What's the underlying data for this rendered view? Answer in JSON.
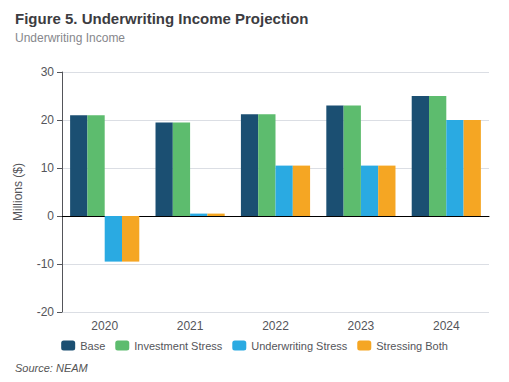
{
  "chart_data": {
    "type": "bar",
    "title": "Figure 5. Underwriting Income Projection",
    "subtitle": "Underwriting Income",
    "ylabel": "Millions ($)",
    "annotations": [
      "Source: NEAM"
    ],
    "categories": [
      "2020",
      "2021",
      "2022",
      "2023",
      "2024"
    ],
    "series": [
      {
        "name": "Base",
        "color": "#1b4f72",
        "values": [
          21.0,
          19.5,
          21.2,
          23.0,
          25.0
        ]
      },
      {
        "name": "Investment Stress",
        "color": "#5dbc6e",
        "values": [
          21.0,
          19.5,
          21.2,
          23.0,
          25.0
        ]
      },
      {
        "name": "Underwriting Stress",
        "color": "#2aaae2",
        "values": [
          -9.5,
          0.5,
          10.5,
          10.5,
          20.0
        ]
      },
      {
        "name": "Stressing Both",
        "color": "#f5a623",
        "values": [
          -9.5,
          0.5,
          10.5,
          10.5,
          20.0
        ]
      }
    ],
    "ylim": [
      -20,
      30
    ],
    "yticks": [
      -20,
      -10,
      0,
      10,
      20,
      30
    ],
    "grid": true,
    "legend": "bottom"
  }
}
